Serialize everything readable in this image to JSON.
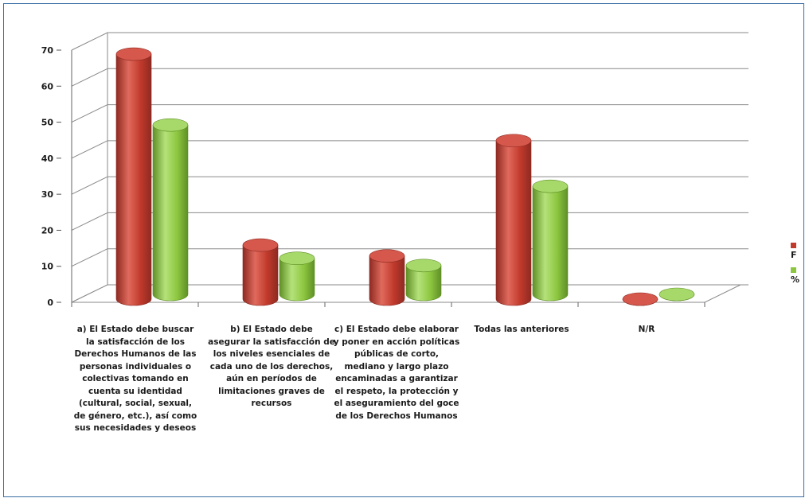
{
  "colors": {
    "f": "#c0392b",
    "pct": "#8cc63f"
  },
  "chart_data": {
    "type": "bar",
    "categories": [
      "a)    El Estado debe buscar la satisfacción de los Derechos Humanos de las personas individuales o colectivas tomando en cuenta su identidad (cultural, social, sexual, de género, etc.), así como sus necesidades y deseos",
      "b)  El Estado debe asegurar la satisfacción de los niveles esenciales de cada uno de los derechos, aún en períodos de limitaciones graves de recursos",
      "c)  El Estado debe elaborar y poner en acción políticas públicas de corto, mediano y largo plazo encaminadas a garantizar el respeto, la protección y el aseguramiento del goce de los Derechos Humanos",
      "Todas las anteriores",
      "N/R"
    ],
    "series": [
      {
        "name": "F",
        "values": [
          68,
          15,
          12,
          44,
          0
        ]
      },
      {
        "name": "%",
        "values": [
          47,
          10,
          8,
          30,
          0
        ]
      }
    ],
    "yticks": [
      "0",
      "10",
      "20",
      "30",
      "40",
      "50",
      "60",
      "70"
    ],
    "ylim": [
      0,
      70
    ],
    "grid": true,
    "legend": "right"
  }
}
